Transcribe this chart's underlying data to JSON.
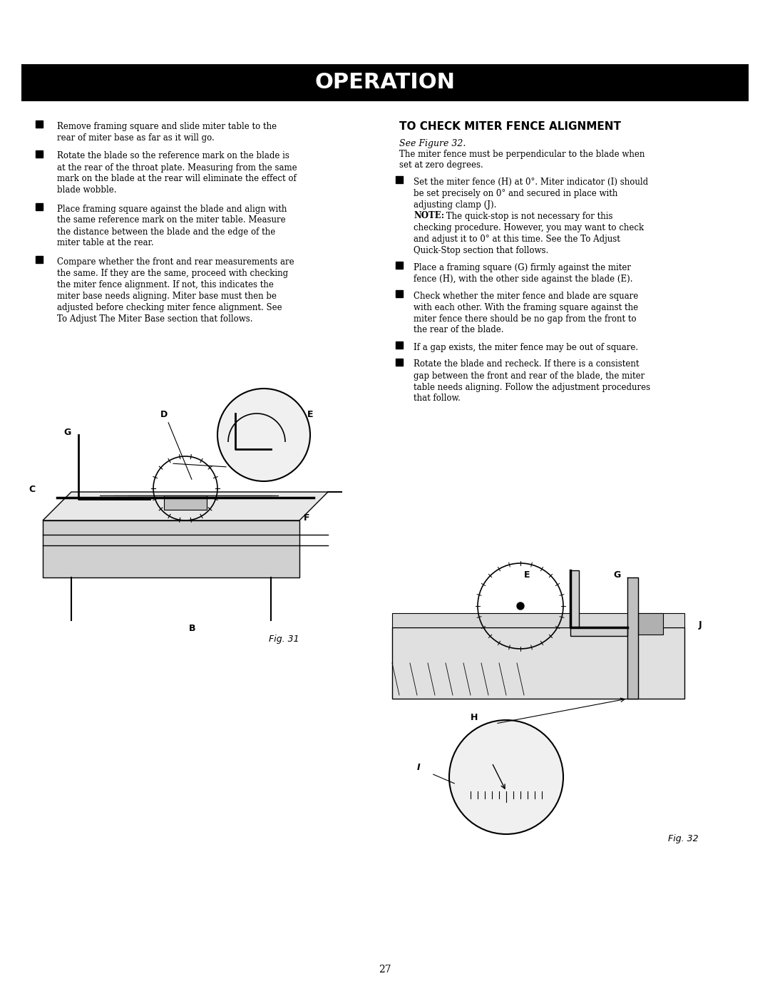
{
  "title": "OPERATION",
  "title_bg": "#000000",
  "title_color": "#ffffff",
  "page_bg": "#ffffff",
  "text_color": "#000000",
  "page_number": "27",
  "left_bullets": [
    "Remove framing square and slide miter table to the\nrear of miter base as far as it will go.",
    "Rotate the blade so the reference mark on the blade is\nat the rear of the throat plate. Measuring from the same\nmark on the blade at the rear will eliminate the effect of\nblade wobble.",
    "Place framing square against the blade and align with\nthe same reference mark on the miter table. Measure\nthe distance between the blade and the edge of the\nmiter table at the rear.",
    "Compare whether the front and rear measurements are\nthe same. If they are the same, proceed with checking\nthe miter fence alignment. If not, this indicates the\nmiter base needs aligning. Miter base must then be\nadjusted before checking miter fence alignment. See\nTo Adjust The Miter Base section that follows."
  ],
  "right_heading": "TO CHECK MITER FENCE ALIGNMENT",
  "right_subheading": "See Figure 32.",
  "right_intro": "The miter fence must be perpendicular to the blade when\nset at zero degrees.",
  "right_bullets": [
    "Set the miter fence (H) at 0°. Miter indicator (I) should\nbe set precisely on 0° and secured in place with\nadjusting clamp (J).\nNOTE: The quick-stop is not necessary for this\nchecking procedure. However, you may want to check\nand adjust it to 0° at this time. See the To Adjust\nQuick-Stop section that follows.",
    "Place a framing square (G) firmly against the miter\nfence (H), with the other side against the blade (E).",
    "Check whether the miter fence and blade are square\nwith each other. With the framing square against the\nmiter fence there should be no gap from the front to\nthe rear of the blade.",
    "If a gap exists, the miter fence may be out of square.",
    "Rotate the blade and recheck. If there is a consistent\ngap between the front and rear of the blade, the miter\ntable needs aligning. Follow the adjustment procedures\nthat follow."
  ],
  "fig31_label": "Fig. 31",
  "fig32_label": "Fig. 32",
  "left_fig_labels": [
    "D",
    "E",
    "G",
    "C",
    "F",
    "B"
  ],
  "right_fig_labels": [
    "E",
    "G",
    "J",
    "H",
    "I"
  ]
}
